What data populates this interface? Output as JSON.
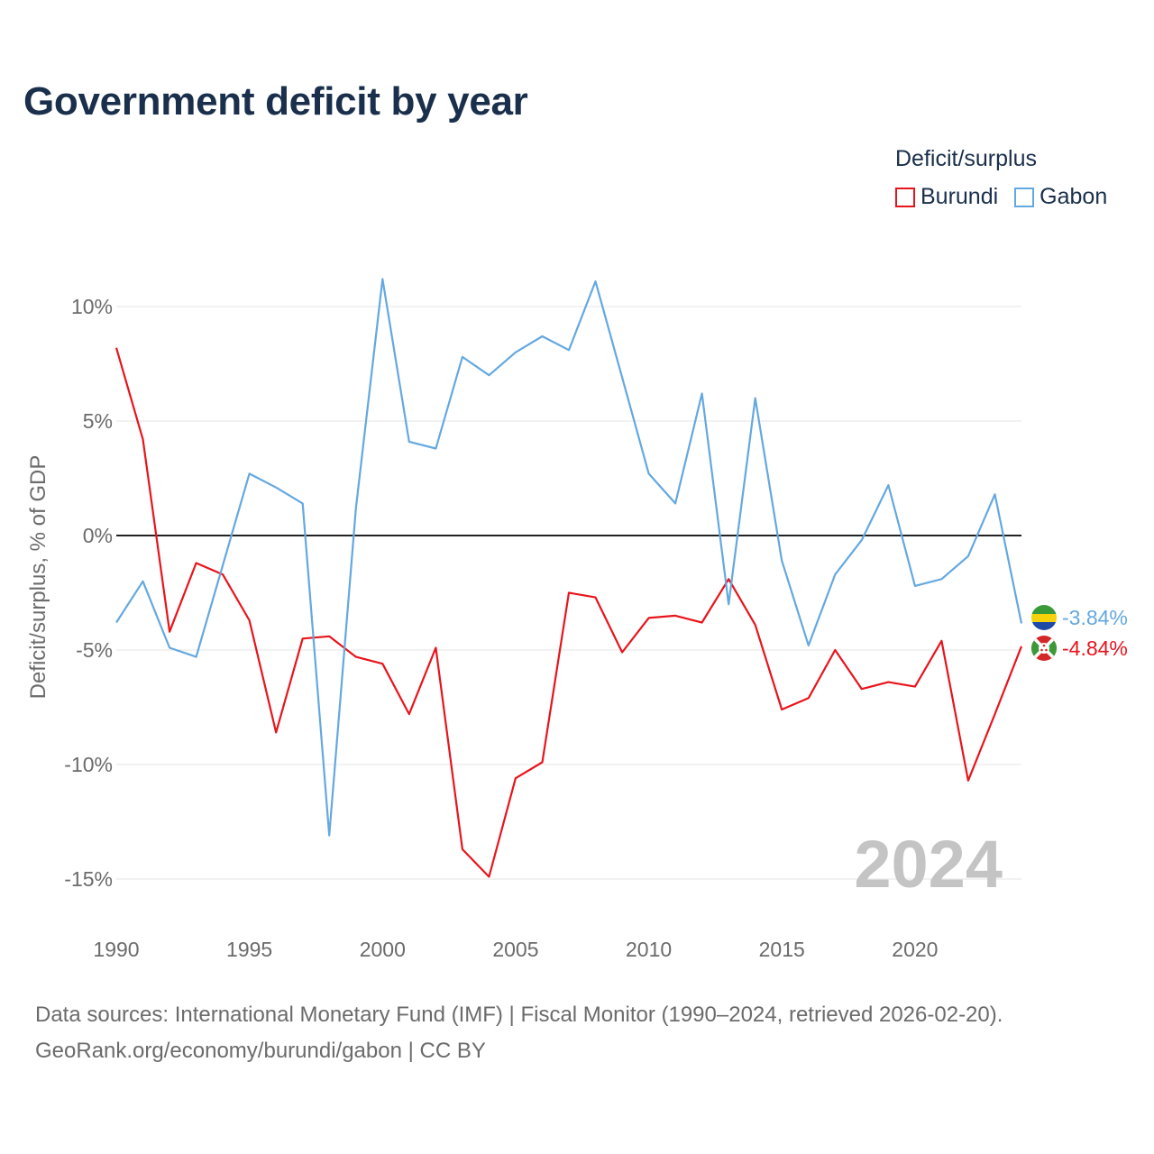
{
  "title": "Government deficit by year",
  "legend": {
    "title": "Deficit/surplus",
    "items": [
      {
        "label": "Burundi",
        "color": "#e8141c"
      },
      {
        "label": "Gabon",
        "color": "#64a8e0"
      }
    ]
  },
  "chart_data": {
    "type": "line",
    "title": "Government deficit by year",
    "xlabel": "",
    "ylabel": "Deficit/surplus, % of GDP",
    "x": [
      1990,
      1991,
      1992,
      1993,
      1994,
      1995,
      1996,
      1997,
      1998,
      1999,
      2000,
      2001,
      2002,
      2003,
      2004,
      2005,
      2006,
      2007,
      2008,
      2009,
      2010,
      2011,
      2012,
      2013,
      2014,
      2015,
      2016,
      2017,
      2018,
      2019,
      2020,
      2021,
      2022,
      2023,
      2024
    ],
    "xlim": [
      1990,
      2024
    ],
    "ylim": [
      -17,
      12
    ],
    "xticks": [
      1990,
      1995,
      2000,
      2005,
      2010,
      2015,
      2020
    ],
    "xtick_labels": [
      "1990",
      "1995",
      "2000",
      "2005",
      "2010",
      "2015",
      "2020"
    ],
    "yticks": [
      10,
      5,
      0,
      -5,
      -10,
      -15
    ],
    "ytick_labels": [
      "10%",
      "5%",
      "0%",
      "-5%",
      "-10%",
      "-15%"
    ],
    "grid": true,
    "zero_line": true,
    "series": [
      {
        "name": "Burundi",
        "color": "#e8141c",
        "values": [
          8.2,
          4.2,
          -4.2,
          -1.2,
          -1.7,
          -3.7,
          -8.6,
          -4.5,
          -4.4,
          -5.3,
          -5.6,
          -7.8,
          -4.9,
          -13.7,
          -14.9,
          -10.6,
          -9.9,
          -2.5,
          -2.7,
          -5.1,
          -3.6,
          -3.5,
          -3.8,
          -1.9,
          -3.9,
          -7.6,
          -7.1,
          -5.0,
          -6.7,
          -6.4,
          -6.6,
          -4.6,
          -10.7,
          -7.8,
          -4.84
        ],
        "end_label": "-4.84%"
      },
      {
        "name": "Gabon",
        "color": "#64a8e0",
        "values": [
          -3.8,
          -2.0,
          -4.9,
          -5.3,
          -1.3,
          2.7,
          2.1,
          1.4,
          -13.1,
          1.2,
          11.2,
          4.1,
          3.8,
          7.8,
          7.0,
          8.0,
          8.7,
          8.1,
          11.1,
          6.9,
          2.7,
          1.4,
          6.2,
          -3.0,
          6.0,
          -1.1,
          -4.8,
          -1.7,
          -0.2,
          2.2,
          -2.2,
          -1.9,
          -0.9,
          1.8,
          -3.84
        ],
        "end_label": "-3.84%"
      }
    ],
    "annotation": "2024"
  },
  "footer": {
    "line1": "Data sources: International Monetary Fund (IMF) | Fiscal Monitor (1990–2024, retrieved 2026-02-20).",
    "line2": "GeoRank.org/economy/burundi/gabon | CC BY"
  },
  "colors": {
    "title": "#1a2f4b",
    "axis_text": "#6b6b6b",
    "grid": "#e6e6e6",
    "zero_line": "#222222",
    "watermark": "#c4c4c4"
  }
}
